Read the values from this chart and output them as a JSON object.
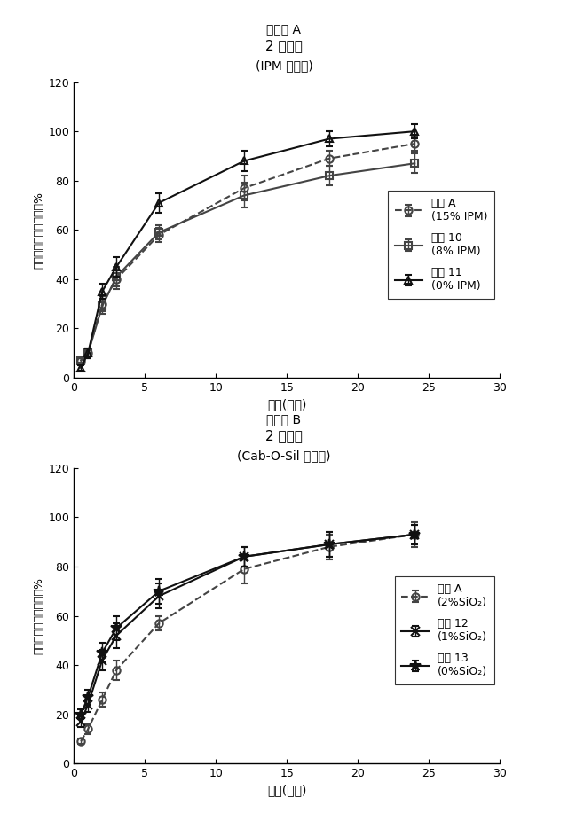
{
  "panel_a": {
    "panel_label": "パネル A",
    "title": "2 型溶解",
    "subtitle": "(IPM の効果)",
    "xlabel": "時間(時間)",
    "ylabel": "放出された薬物の累積%",
    "xlim": [
      0,
      30
    ],
    "ylim": [
      0,
      120
    ],
    "xticks": [
      0,
      5,
      10,
      15,
      20,
      25,
      30
    ],
    "yticks": [
      0,
      20,
      40,
      60,
      80,
      100,
      120
    ],
    "series": [
      {
        "label_line1": "参照 A",
        "label_line2": "(15% IPM)",
        "x": [
          0.5,
          1,
          2,
          3,
          6,
          12,
          18,
          24
        ],
        "y": [
          7,
          10,
          30,
          40,
          58,
          77,
          89,
          95
        ],
        "yerr": [
          1,
          2,
          3,
          4,
          3,
          5,
          3,
          3
        ],
        "color": "#444444",
        "linestyle": "dashed",
        "marker": "o",
        "markersize": 6,
        "fillstyle": "none",
        "zorder": 3
      },
      {
        "label_line1": "製剤 10",
        "label_line2": "(8% IPM)",
        "x": [
          0.5,
          1,
          2,
          3,
          6,
          12,
          18,
          24
        ],
        "y": [
          7,
          10,
          29,
          41,
          59,
          74,
          82,
          87
        ],
        "yerr": [
          1,
          2,
          3,
          4,
          3,
          5,
          4,
          4
        ],
        "color": "#444444",
        "linestyle": "solid",
        "marker": "s",
        "markersize": 6,
        "fillstyle": "none",
        "zorder": 2
      },
      {
        "label_line1": "製剤 11",
        "label_line2": "(0% IPM)",
        "x": [
          0.5,
          1,
          2,
          3,
          6,
          12,
          18,
          24
        ],
        "y": [
          4,
          10,
          35,
          45,
          71,
          88,
          97,
          100
        ],
        "yerr": [
          1,
          2,
          3,
          4,
          4,
          4,
          3,
          3
        ],
        "color": "#111111",
        "linestyle": "solid",
        "marker": "^",
        "markersize": 6,
        "fillstyle": "none",
        "zorder": 4
      }
    ]
  },
  "panel_b": {
    "panel_label": "パネル B",
    "title": "2 型溶解",
    "subtitle": "(Cab-O-Sil の効果)",
    "xlabel": "時間(時間)",
    "ylabel": "放出された薬物の累積%",
    "xlim": [
      0,
      30
    ],
    "ylim": [
      0,
      120
    ],
    "xticks": [
      0,
      5,
      10,
      15,
      20,
      25,
      30
    ],
    "yticks": [
      0,
      20,
      40,
      60,
      80,
      100,
      120
    ],
    "series": [
      {
        "label_line1": "参照 A",
        "label_line2": "(2%SiO₂)",
        "x": [
          0.5,
          1,
          2,
          3,
          6,
          12,
          18,
          24
        ],
        "y": [
          9,
          14,
          26,
          38,
          57,
          79,
          88,
          93
        ],
        "yerr": [
          1,
          2,
          3,
          4,
          3,
          6,
          5,
          5
        ],
        "color": "#444444",
        "linestyle": "dashed",
        "marker": "o",
        "markersize": 6,
        "fillstyle": "none",
        "zorder": 2
      },
      {
        "label_line1": "製剤 12",
        "label_line2": "(1%SiO₂)",
        "x": [
          0.5,
          1,
          2,
          3,
          6,
          12,
          18,
          24
        ],
        "y": [
          17,
          24,
          42,
          52,
          68,
          84,
          89,
          93
        ],
        "yerr": [
          2,
          3,
          4,
          5,
          5,
          4,
          5,
          4
        ],
        "color": "#111111",
        "linestyle": "solid",
        "marker": "x",
        "markersize": 7,
        "fillstyle": "full",
        "zorder": 3
      },
      {
        "label_line1": "製剤 13",
        "label_line2": "(0%SiO₂)",
        "x": [
          0.5,
          1,
          2,
          3,
          6,
          12,
          18,
          24
        ],
        "y": [
          20,
          27,
          45,
          55,
          70,
          84,
          89,
          93
        ],
        "yerr": [
          2,
          3,
          4,
          5,
          5,
          4,
          5,
          4
        ],
        "color": "#111111",
        "linestyle": "solid",
        "marker": "*",
        "markersize": 9,
        "fillstyle": "full",
        "zorder": 4
      }
    ]
  },
  "background_color": "#ffffff",
  "fig_background": "#ffffff"
}
